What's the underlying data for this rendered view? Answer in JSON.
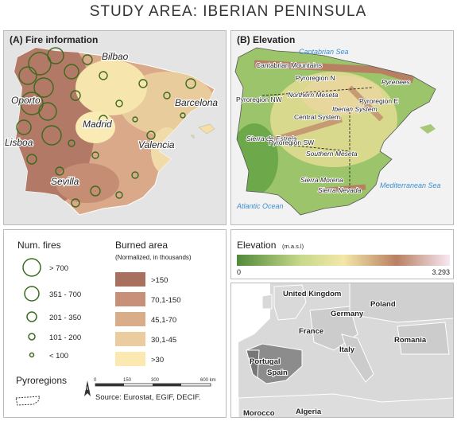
{
  "title": "STUDY AREA: IBERIAN PENINSULA",
  "fire_panel": {
    "title": "(A) Fire information",
    "places": [
      "Bilbao",
      "Oporto",
      "Barcelona",
      "Madrid",
      "Lisboa",
      "Valencia",
      "Sevilla"
    ]
  },
  "elevation_panel": {
    "title": "(B) Elevation",
    "labels": [
      "Cantabrian Sea",
      "Cantabrian Mountains",
      "Pyroregion N",
      "Pyrenees",
      "Pyroregion NW",
      "Northern Meseta",
      "Iberian System",
      "Pyroregion E",
      "Central System",
      "Sierra de Estrela",
      "Pyroregion SW",
      "Southern Meseta",
      "Sierra Morena",
      "Sierra Nevada",
      "Mediterranean Sea",
      "Atlantic Ocean"
    ]
  },
  "legend": {
    "fires_title": "Num. fires",
    "fires_classes": [
      "> 700",
      "351 - 700",
      "201 - 350",
      "101 - 200",
      "< 100"
    ],
    "burned_title": "Burned area",
    "burned_subtitle": "(Normalized, in thousands)",
    "burned_classes": [
      ">150",
      "70,1-150",
      "45,1-70",
      "30,1-45",
      ">30"
    ],
    "pyroregions": "Pyroregions",
    "scale": [
      "0",
      "150",
      "300",
      "600 km"
    ],
    "north": "N",
    "source": "Source: Eurostat, EGIF, DECIF."
  },
  "elevation_legend": {
    "title": "Elevation",
    "unit": "(m.a.s.l)",
    "min": "0",
    "max": "3.293"
  },
  "europe_map": {
    "countries": [
      "United Kingdom",
      "Poland",
      "Germany",
      "France",
      "Romania",
      "Italy",
      "Portugal",
      "Spain",
      "Morocco",
      "Algeria"
    ]
  }
}
